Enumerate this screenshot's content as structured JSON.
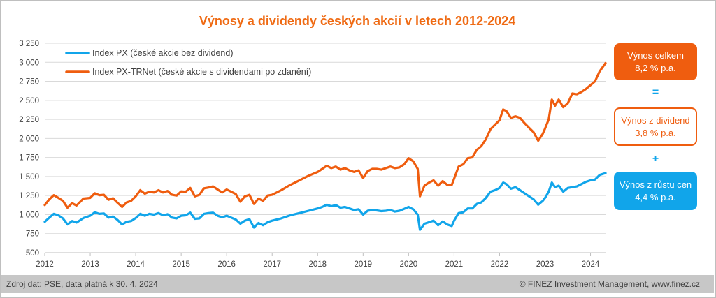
{
  "chart_data": {
    "type": "line",
    "title": "Výnosy a dividendy českých akcií v letech 2012-2024",
    "xlabel": "",
    "ylabel": "",
    "xlim": [
      2012.0,
      2024.33
    ],
    "ylim": [
      500,
      3250
    ],
    "yticks": [
      "3 250",
      "3 000",
      "2 750",
      "2 500",
      "2 250",
      "2 000",
      "1 750",
      "1 500",
      "1 250",
      "1 000",
      "750",
      "500"
    ],
    "ytick_values": [
      3250,
      3000,
      2750,
      2500,
      2250,
      2000,
      1750,
      1500,
      1250,
      1000,
      750,
      500
    ],
    "xticks": [
      "2012",
      "2013",
      "2014",
      "2015",
      "2016",
      "2017",
      "2018",
      "2019",
      "2020",
      "2021",
      "2022",
      "2023",
      "2024"
    ],
    "xtick_values": [
      2012,
      2013,
      2014,
      2015,
      2016,
      2017,
      2018,
      2019,
      2020,
      2021,
      2022,
      2023,
      2024
    ],
    "grid": "horizontal",
    "legend_position": "top-left",
    "series": [
      {
        "name": "Index PX (české akcie bez dividend)",
        "color": "#11a5ea",
        "x": [
          2012.0,
          2012.1,
          2012.2,
          2012.3,
          2012.4,
          2012.5,
          2012.6,
          2012.7,
          2012.85,
          2013.0,
          2013.1,
          2013.2,
          2013.3,
          2013.4,
          2013.5,
          2013.6,
          2013.7,
          2013.8,
          2013.9,
          2014.0,
          2014.1,
          2014.2,
          2014.3,
          2014.4,
          2014.5,
          2014.6,
          2014.7,
          2014.8,
          2014.9,
          2015.0,
          2015.1,
          2015.2,
          2015.3,
          2015.4,
          2015.5,
          2015.6,
          2015.7,
          2015.8,
          2015.9,
          2016.0,
          2016.1,
          2016.2,
          2016.3,
          2016.4,
          2016.5,
          2016.6,
          2016.7,
          2016.8,
          2016.9,
          2017.0,
          2017.2,
          2017.4,
          2017.6,
          2017.8,
          2018.0,
          2018.1,
          2018.2,
          2018.3,
          2018.4,
          2018.5,
          2018.6,
          2018.7,
          2018.8,
          2018.9,
          2019.0,
          2019.1,
          2019.2,
          2019.3,
          2019.4,
          2019.5,
          2019.6,
          2019.7,
          2019.8,
          2019.9,
          2020.0,
          2020.1,
          2020.2,
          2020.25,
          2020.35,
          2020.45,
          2020.55,
          2020.65,
          2020.75,
          2020.85,
          2020.95,
          2021.0,
          2021.1,
          2021.2,
          2021.3,
          2021.4,
          2021.5,
          2021.6,
          2021.7,
          2021.8,
          2021.9,
          2022.0,
          2022.08,
          2022.15,
          2022.25,
          2022.35,
          2022.45,
          2022.55,
          2022.65,
          2022.75,
          2022.85,
          2022.95,
          2023.0,
          2023.08,
          2023.15,
          2023.22,
          2023.3,
          2023.4,
          2023.5,
          2023.6,
          2023.7,
          2023.8,
          2023.9,
          2024.0,
          2024.1,
          2024.2,
          2024.33
        ],
        "values": [
          905,
          960,
          1010,
          990,
          950,
          870,
          915,
          895,
          955,
          985,
          1030,
          1010,
          1015,
          960,
          975,
          930,
          870,
          905,
          915,
          955,
          1010,
          985,
          1010,
          1000,
          1020,
          990,
          1005,
          960,
          950,
          985,
          990,
          1025,
          945,
          950,
          1010,
          1020,
          1025,
          985,
          965,
          985,
          960,
          935,
          880,
          920,
          940,
          830,
          890,
          860,
          900,
          920,
          950,
          990,
          1020,
          1050,
          1080,
          1100,
          1130,
          1110,
          1125,
          1090,
          1100,
          1080,
          1060,
          1070,
          1000,
          1050,
          1060,
          1055,
          1045,
          1050,
          1060,
          1040,
          1050,
          1075,
          1100,
          1070,
          1000,
          800,
          880,
          900,
          920,
          860,
          910,
          870,
          850,
          920,
          1020,
          1030,
          1080,
          1080,
          1140,
          1160,
          1220,
          1300,
          1320,
          1350,
          1420,
          1400,
          1340,
          1360,
          1320,
          1280,
          1240,
          1200,
          1130,
          1180,
          1220,
          1300,
          1420,
          1360,
          1380,
          1300,
          1350,
          1360,
          1370,
          1400,
          1430,
          1450,
          1460,
          1520,
          1545
        ]
      },
      {
        "name": "Index PX-TRNet (české akcie s dividendami po zdanění)",
        "color": "#ef5d0f",
        "x": [
          2012.0,
          2012.1,
          2012.2,
          2012.3,
          2012.4,
          2012.5,
          2012.6,
          2012.7,
          2012.85,
          2013.0,
          2013.1,
          2013.2,
          2013.3,
          2013.4,
          2013.5,
          2013.6,
          2013.7,
          2013.8,
          2013.9,
          2014.0,
          2014.1,
          2014.2,
          2014.3,
          2014.4,
          2014.5,
          2014.6,
          2014.7,
          2014.8,
          2014.9,
          2015.0,
          2015.1,
          2015.2,
          2015.3,
          2015.4,
          2015.5,
          2015.6,
          2015.7,
          2015.8,
          2015.9,
          2016.0,
          2016.1,
          2016.2,
          2016.3,
          2016.4,
          2016.5,
          2016.6,
          2016.7,
          2016.8,
          2016.9,
          2017.0,
          2017.2,
          2017.4,
          2017.6,
          2017.8,
          2018.0,
          2018.1,
          2018.2,
          2018.3,
          2018.4,
          2018.5,
          2018.6,
          2018.7,
          2018.8,
          2018.9,
          2019.0,
          2019.1,
          2019.2,
          2019.3,
          2019.4,
          2019.5,
          2019.6,
          2019.7,
          2019.8,
          2019.9,
          2020.0,
          2020.1,
          2020.2,
          2020.25,
          2020.35,
          2020.45,
          2020.55,
          2020.65,
          2020.75,
          2020.85,
          2020.95,
          2021.0,
          2021.1,
          2021.2,
          2021.3,
          2021.4,
          2021.5,
          2021.6,
          2021.7,
          2021.8,
          2021.9,
          2022.0,
          2022.08,
          2022.15,
          2022.25,
          2022.35,
          2022.45,
          2022.55,
          2022.65,
          2022.75,
          2022.85,
          2022.95,
          2023.0,
          2023.08,
          2023.15,
          2023.22,
          2023.3,
          2023.4,
          2023.5,
          2023.6,
          2023.7,
          2023.8,
          2023.9,
          2024.0,
          2024.1,
          2024.2,
          2024.33
        ],
        "values": [
          1125,
          1200,
          1255,
          1220,
          1180,
          1090,
          1150,
          1120,
          1210,
          1220,
          1280,
          1255,
          1260,
          1195,
          1215,
          1155,
          1100,
          1160,
          1180,
          1240,
          1320,
          1275,
          1300,
          1290,
          1320,
          1290,
          1310,
          1260,
          1250,
          1305,
          1300,
          1350,
          1240,
          1260,
          1345,
          1355,
          1370,
          1330,
          1290,
          1330,
          1300,
          1270,
          1170,
          1240,
          1260,
          1140,
          1210,
          1180,
          1250,
          1260,
          1320,
          1390,
          1450,
          1510,
          1560,
          1600,
          1640,
          1610,
          1630,
          1590,
          1610,
          1580,
          1560,
          1580,
          1480,
          1570,
          1600,
          1600,
          1590,
          1610,
          1630,
          1610,
          1620,
          1660,
          1740,
          1700,
          1600,
          1240,
          1380,
          1420,
          1450,
          1380,
          1440,
          1390,
          1390,
          1470,
          1630,
          1660,
          1740,
          1750,
          1850,
          1900,
          1990,
          2120,
          2180,
          2240,
          2380,
          2360,
          2270,
          2290,
          2270,
          2200,
          2140,
          2080,
          1970,
          2060,
          2130,
          2250,
          2510,
          2430,
          2510,
          2410,
          2460,
          2590,
          2580,
          2610,
          2650,
          2700,
          2750,
          2880,
          2990
        ]
      }
    ]
  },
  "side_boxes": {
    "total_line1": "Výnos celkem",
    "total_line2": "8,2 % p.a.",
    "equals": "=",
    "dividend_line1": "Výnos z dividend",
    "dividend_line2": "3,8 % p.a.",
    "plus": "+",
    "growth_line1": "Výnos z růstu cen",
    "growth_line2": "4,4 % p.a.",
    "colors": {
      "total": "#ef5d0f",
      "growth": "#11a5ea"
    }
  },
  "footer": {
    "source": "Zdroj dat: PSE, data platná k 30. 4. 2024",
    "copyright": "© FINEZ Investment Management, www.finez.cz"
  }
}
